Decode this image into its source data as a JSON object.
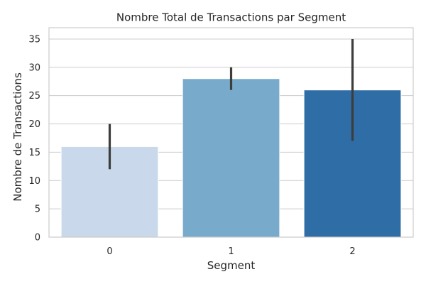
{
  "chart_data": {
    "type": "bar",
    "title": "Nombre Total de Transactions par Segment",
    "xlabel": "Segment",
    "ylabel": "Nombre de Transactions",
    "categories": [
      "0",
      "1",
      "2"
    ],
    "values": [
      16,
      28,
      26
    ],
    "error_bars": [
      {
        "low": 12,
        "high": 20
      },
      {
        "low": 26,
        "high": 30
      },
      {
        "low": 17,
        "high": 35
      }
    ],
    "ylim": [
      0,
      37
    ],
    "yticks": [
      0,
      5,
      10,
      15,
      20,
      25,
      30,
      35
    ],
    "bar_colors": [
      "#c9d9eb",
      "#78abcb",
      "#2f6da6"
    ],
    "error_bar_color": "#3d3d3d",
    "grid": "horizontal",
    "grid_color": "#cccccc",
    "frame_color": "#cccccc"
  }
}
